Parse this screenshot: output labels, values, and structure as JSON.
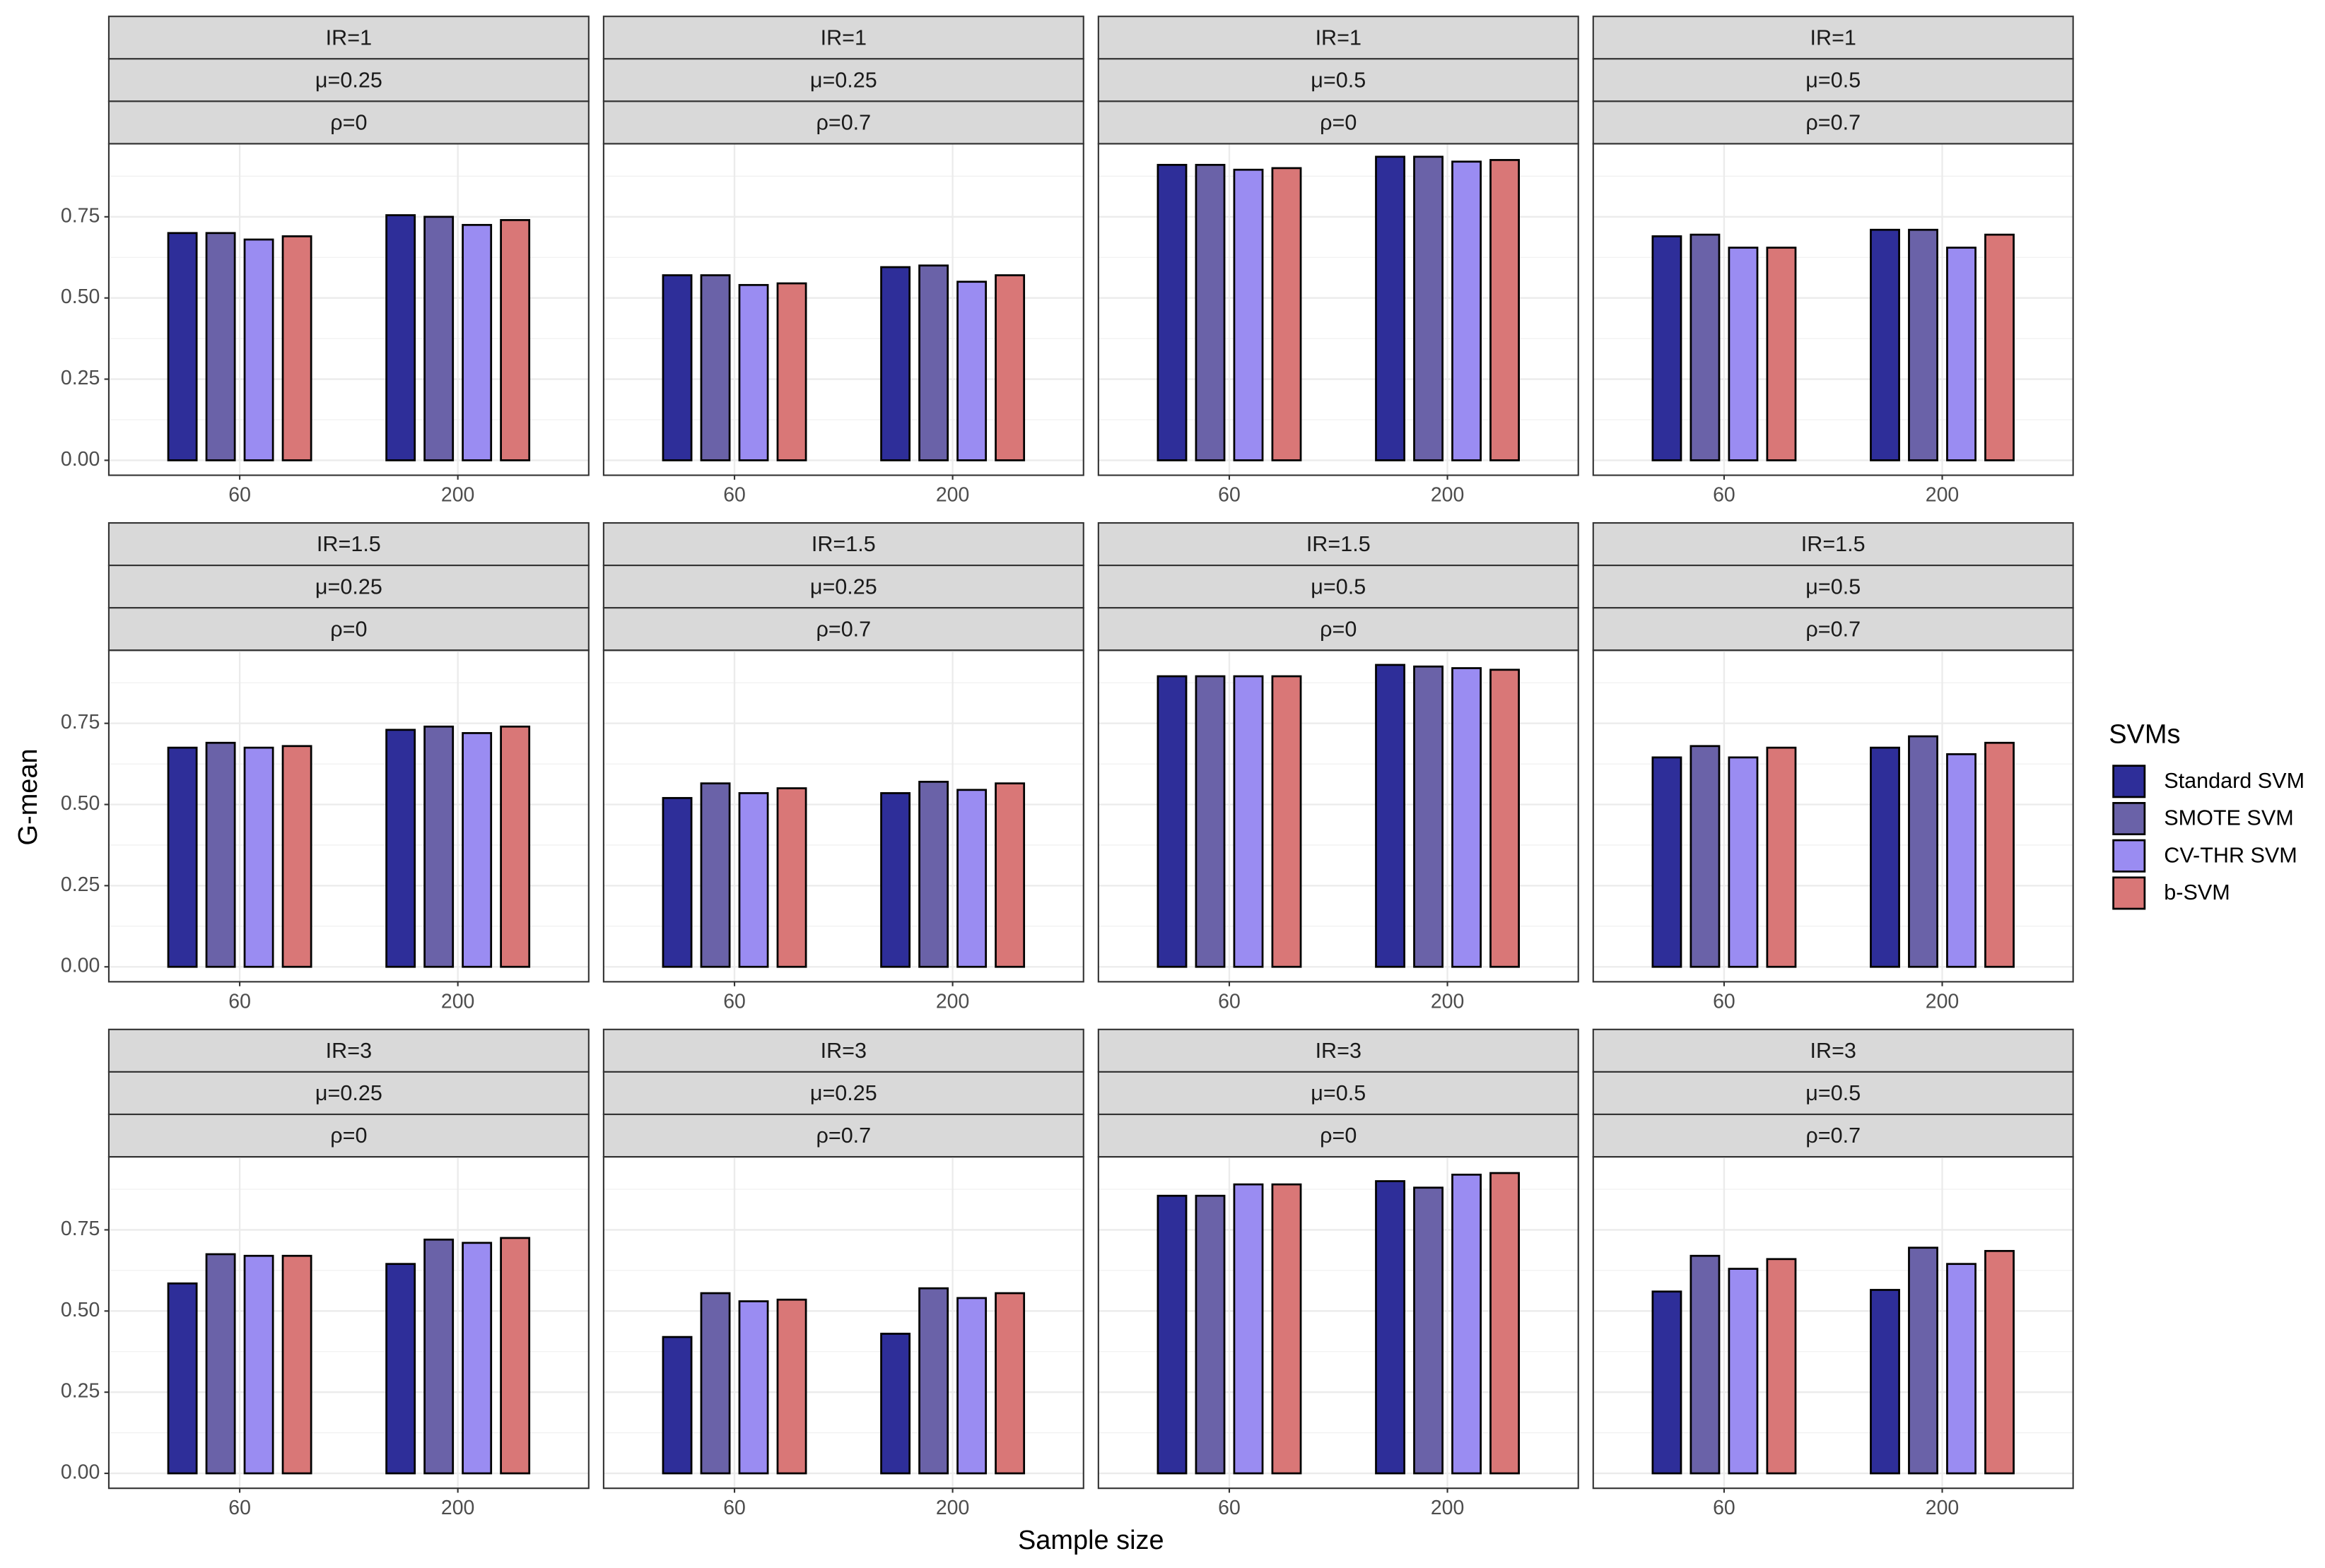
{
  "figure": {
    "y_label": "G-mean",
    "x_label": "Sample size",
    "legend_title": "SVMs"
  },
  "chart_data": [
    {
      "type": "bar",
      "strips": [
        "IR=1",
        "μ=0.25",
        "ρ=0"
      ],
      "categories": [
        "60",
        "200"
      ],
      "ylim": [
        -0.046,
        0.975
      ],
      "yticks": [
        {
          "value": 0,
          "label": "0.00"
        },
        {
          "value": 0.25,
          "label": "0.25"
        },
        {
          "value": 0.5,
          "label": "0.50"
        },
        {
          "value": 0.75,
          "label": "0.75"
        }
      ],
      "grid": true,
      "series": [
        {
          "name": "Standard SVM",
          "color": "#2e2e99",
          "values": [
            0.7,
            0.755
          ]
        },
        {
          "name": "SMOTE SVM",
          "color": "#6a62a8",
          "values": [
            0.7,
            0.75
          ]
        },
        {
          "name": "CV-THR SVM",
          "color": "#9a8cf2",
          "values": [
            0.68,
            0.725
          ]
        },
        {
          "name": "b-SVM",
          "color": "#d97777",
          "values": [
            0.69,
            0.74
          ]
        }
      ]
    },
    {
      "type": "bar",
      "strips": [
        "IR=1",
        "μ=0.25",
        "ρ=0.7"
      ],
      "categories": [
        "60",
        "200"
      ],
      "ylim": [
        -0.046,
        0.975
      ],
      "yticks": [
        {
          "value": 0,
          "label": "0.00"
        },
        {
          "value": 0.25,
          "label": "0.25"
        },
        {
          "value": 0.5,
          "label": "0.50"
        },
        {
          "value": 0.75,
          "label": "0.75"
        }
      ],
      "grid": true,
      "series": [
        {
          "name": "Standard SVM",
          "color": "#2e2e99",
          "values": [
            0.57,
            0.595
          ]
        },
        {
          "name": "SMOTE SVM",
          "color": "#6a62a8",
          "values": [
            0.57,
            0.6
          ]
        },
        {
          "name": "CV-THR SVM",
          "color": "#9a8cf2",
          "values": [
            0.54,
            0.55
          ]
        },
        {
          "name": "b-SVM",
          "color": "#d97777",
          "values": [
            0.545,
            0.57
          ]
        }
      ]
    },
    {
      "type": "bar",
      "strips": [
        "IR=1",
        "μ=0.5",
        "ρ=0"
      ],
      "categories": [
        "60",
        "200"
      ],
      "ylim": [
        -0.046,
        0.975
      ],
      "yticks": [
        {
          "value": 0,
          "label": "0.00"
        },
        {
          "value": 0.25,
          "label": "0.25"
        },
        {
          "value": 0.5,
          "label": "0.50"
        },
        {
          "value": 0.75,
          "label": "0.75"
        }
      ],
      "grid": true,
      "series": [
        {
          "name": "Standard SVM",
          "color": "#2e2e99",
          "values": [
            0.91,
            0.935
          ]
        },
        {
          "name": "SMOTE SVM",
          "color": "#6a62a8",
          "values": [
            0.91,
            0.935
          ]
        },
        {
          "name": "CV-THR SVM",
          "color": "#9a8cf2",
          "values": [
            0.895,
            0.92
          ]
        },
        {
          "name": "b-SVM",
          "color": "#d97777",
          "values": [
            0.9,
            0.925
          ]
        }
      ]
    },
    {
      "type": "bar",
      "strips": [
        "IR=1",
        "μ=0.5",
        "ρ=0.7"
      ],
      "categories": [
        "60",
        "200"
      ],
      "ylim": [
        -0.046,
        0.975
      ],
      "yticks": [
        {
          "value": 0,
          "label": "0.00"
        },
        {
          "value": 0.25,
          "label": "0.25"
        },
        {
          "value": 0.5,
          "label": "0.50"
        },
        {
          "value": 0.75,
          "label": "0.75"
        }
      ],
      "grid": true,
      "series": [
        {
          "name": "Standard SVM",
          "color": "#2e2e99",
          "values": [
            0.69,
            0.71
          ]
        },
        {
          "name": "SMOTE SVM",
          "color": "#6a62a8",
          "values": [
            0.695,
            0.71
          ]
        },
        {
          "name": "CV-THR SVM",
          "color": "#9a8cf2",
          "values": [
            0.655,
            0.655
          ]
        },
        {
          "name": "b-SVM",
          "color": "#d97777",
          "values": [
            0.655,
            0.695
          ]
        }
      ]
    },
    {
      "type": "bar",
      "strips": [
        "IR=1.5",
        "μ=0.25",
        "ρ=0"
      ],
      "categories": [
        "60",
        "200"
      ],
      "ylim": [
        -0.046,
        0.975
      ],
      "yticks": [
        {
          "value": 0,
          "label": "0.00"
        },
        {
          "value": 0.25,
          "label": "0.25"
        },
        {
          "value": 0.5,
          "label": "0.50"
        },
        {
          "value": 0.75,
          "label": "0.75"
        }
      ],
      "grid": true,
      "series": [
        {
          "name": "Standard SVM",
          "color": "#2e2e99",
          "values": [
            0.675,
            0.73
          ]
        },
        {
          "name": "SMOTE SVM",
          "color": "#6a62a8",
          "values": [
            0.69,
            0.74
          ]
        },
        {
          "name": "CV-THR SVM",
          "color": "#9a8cf2",
          "values": [
            0.675,
            0.72
          ]
        },
        {
          "name": "b-SVM",
          "color": "#d97777",
          "values": [
            0.68,
            0.74
          ]
        }
      ]
    },
    {
      "type": "bar",
      "strips": [
        "IR=1.5",
        "μ=0.25",
        "ρ=0.7"
      ],
      "categories": [
        "60",
        "200"
      ],
      "ylim": [
        -0.046,
        0.975
      ],
      "yticks": [
        {
          "value": 0,
          "label": "0.00"
        },
        {
          "value": 0.25,
          "label": "0.25"
        },
        {
          "value": 0.5,
          "label": "0.50"
        },
        {
          "value": 0.75,
          "label": "0.75"
        }
      ],
      "grid": true,
      "series": [
        {
          "name": "Standard SVM",
          "color": "#2e2e99",
          "values": [
            0.52,
            0.535
          ]
        },
        {
          "name": "SMOTE SVM",
          "color": "#6a62a8",
          "values": [
            0.565,
            0.57
          ]
        },
        {
          "name": "CV-THR SVM",
          "color": "#9a8cf2",
          "values": [
            0.535,
            0.545
          ]
        },
        {
          "name": "b-SVM",
          "color": "#d97777",
          "values": [
            0.55,
            0.565
          ]
        }
      ]
    },
    {
      "type": "bar",
      "strips": [
        "IR=1.5",
        "μ=0.5",
        "ρ=0"
      ],
      "categories": [
        "60",
        "200"
      ],
      "ylim": [
        -0.046,
        0.975
      ],
      "yticks": [
        {
          "value": 0,
          "label": "0.00"
        },
        {
          "value": 0.25,
          "label": "0.25"
        },
        {
          "value": 0.5,
          "label": "0.50"
        },
        {
          "value": 0.75,
          "label": "0.75"
        }
      ],
      "grid": true,
      "series": [
        {
          "name": "Standard SVM",
          "color": "#2e2e99",
          "values": [
            0.895,
            0.93
          ]
        },
        {
          "name": "SMOTE SVM",
          "color": "#6a62a8",
          "values": [
            0.895,
            0.925
          ]
        },
        {
          "name": "CV-THR SVM",
          "color": "#9a8cf2",
          "values": [
            0.895,
            0.92
          ]
        },
        {
          "name": "b-SVM",
          "color": "#d97777",
          "values": [
            0.895,
            0.915
          ]
        }
      ]
    },
    {
      "type": "bar",
      "strips": [
        "IR=1.5",
        "μ=0.5",
        "ρ=0.7"
      ],
      "categories": [
        "60",
        "200"
      ],
      "ylim": [
        -0.046,
        0.975
      ],
      "yticks": [
        {
          "value": 0,
          "label": "0.00"
        },
        {
          "value": 0.25,
          "label": "0.25"
        },
        {
          "value": 0.5,
          "label": "0.50"
        },
        {
          "value": 0.75,
          "label": "0.75"
        }
      ],
      "grid": true,
      "series": [
        {
          "name": "Standard SVM",
          "color": "#2e2e99",
          "values": [
            0.645,
            0.675
          ]
        },
        {
          "name": "SMOTE SVM",
          "color": "#6a62a8",
          "values": [
            0.68,
            0.71
          ]
        },
        {
          "name": "CV-THR SVM",
          "color": "#9a8cf2",
          "values": [
            0.645,
            0.655
          ]
        },
        {
          "name": "b-SVM",
          "color": "#d97777",
          "values": [
            0.675,
            0.69
          ]
        }
      ]
    },
    {
      "type": "bar",
      "strips": [
        "IR=3",
        "μ=0.25",
        "ρ=0"
      ],
      "categories": [
        "60",
        "200"
      ],
      "ylim": [
        -0.046,
        0.975
      ],
      "yticks": [
        {
          "value": 0,
          "label": "0.00"
        },
        {
          "value": 0.25,
          "label": "0.25"
        },
        {
          "value": 0.5,
          "label": "0.50"
        },
        {
          "value": 0.75,
          "label": "0.75"
        }
      ],
      "grid": true,
      "series": [
        {
          "name": "Standard SVM",
          "color": "#2e2e99",
          "values": [
            0.585,
            0.645
          ]
        },
        {
          "name": "SMOTE SVM",
          "color": "#6a62a8",
          "values": [
            0.675,
            0.72
          ]
        },
        {
          "name": "CV-THR SVM",
          "color": "#9a8cf2",
          "values": [
            0.67,
            0.71
          ]
        },
        {
          "name": "b-SVM",
          "color": "#d97777",
          "values": [
            0.67,
            0.725
          ]
        }
      ]
    },
    {
      "type": "bar",
      "strips": [
        "IR=3",
        "μ=0.25",
        "ρ=0.7"
      ],
      "categories": [
        "60",
        "200"
      ],
      "ylim": [
        -0.046,
        0.975
      ],
      "yticks": [
        {
          "value": 0,
          "label": "0.00"
        },
        {
          "value": 0.25,
          "label": "0.25"
        },
        {
          "value": 0.5,
          "label": "0.50"
        },
        {
          "value": 0.75,
          "label": "0.75"
        }
      ],
      "grid": true,
      "series": [
        {
          "name": "Standard SVM",
          "color": "#2e2e99",
          "values": [
            0.42,
            0.43
          ]
        },
        {
          "name": "SMOTE SVM",
          "color": "#6a62a8",
          "values": [
            0.555,
            0.57
          ]
        },
        {
          "name": "CV-THR SVM",
          "color": "#9a8cf2",
          "values": [
            0.53,
            0.54
          ]
        },
        {
          "name": "b-SVM",
          "color": "#d97777",
          "values": [
            0.535,
            0.555
          ]
        }
      ]
    },
    {
      "type": "bar",
      "strips": [
        "IR=3",
        "μ=0.5",
        "ρ=0"
      ],
      "categories": [
        "60",
        "200"
      ],
      "ylim": [
        -0.046,
        0.975
      ],
      "yticks": [
        {
          "value": 0,
          "label": "0.00"
        },
        {
          "value": 0.25,
          "label": "0.25"
        },
        {
          "value": 0.5,
          "label": "0.50"
        },
        {
          "value": 0.75,
          "label": "0.75"
        }
      ],
      "grid": true,
      "series": [
        {
          "name": "Standard SVM",
          "color": "#2e2e99",
          "values": [
            0.855,
            0.9
          ]
        },
        {
          "name": "SMOTE SVM",
          "color": "#6a62a8",
          "values": [
            0.855,
            0.88
          ]
        },
        {
          "name": "CV-THR SVM",
          "color": "#9a8cf2",
          "values": [
            0.89,
            0.92
          ]
        },
        {
          "name": "b-SVM",
          "color": "#d97777",
          "values": [
            0.89,
            0.925
          ]
        }
      ]
    },
    {
      "type": "bar",
      "strips": [
        "IR=3",
        "μ=0.5",
        "ρ=0.7"
      ],
      "categories": [
        "60",
        "200"
      ],
      "ylim": [
        -0.046,
        0.975
      ],
      "yticks": [
        {
          "value": 0,
          "label": "0.00"
        },
        {
          "value": 0.25,
          "label": "0.25"
        },
        {
          "value": 0.5,
          "label": "0.50"
        },
        {
          "value": 0.75,
          "label": "0.75"
        }
      ],
      "grid": true,
      "series": [
        {
          "name": "Standard SVM",
          "color": "#2e2e99",
          "values": [
            0.56,
            0.565
          ]
        },
        {
          "name": "SMOTE SVM",
          "color": "#6a62a8",
          "values": [
            0.67,
            0.695
          ]
        },
        {
          "name": "CV-THR SVM",
          "color": "#9a8cf2",
          "values": [
            0.63,
            0.645
          ]
        },
        {
          "name": "b-SVM",
          "color": "#d97777",
          "values": [
            0.66,
            0.685
          ]
        }
      ]
    }
  ]
}
